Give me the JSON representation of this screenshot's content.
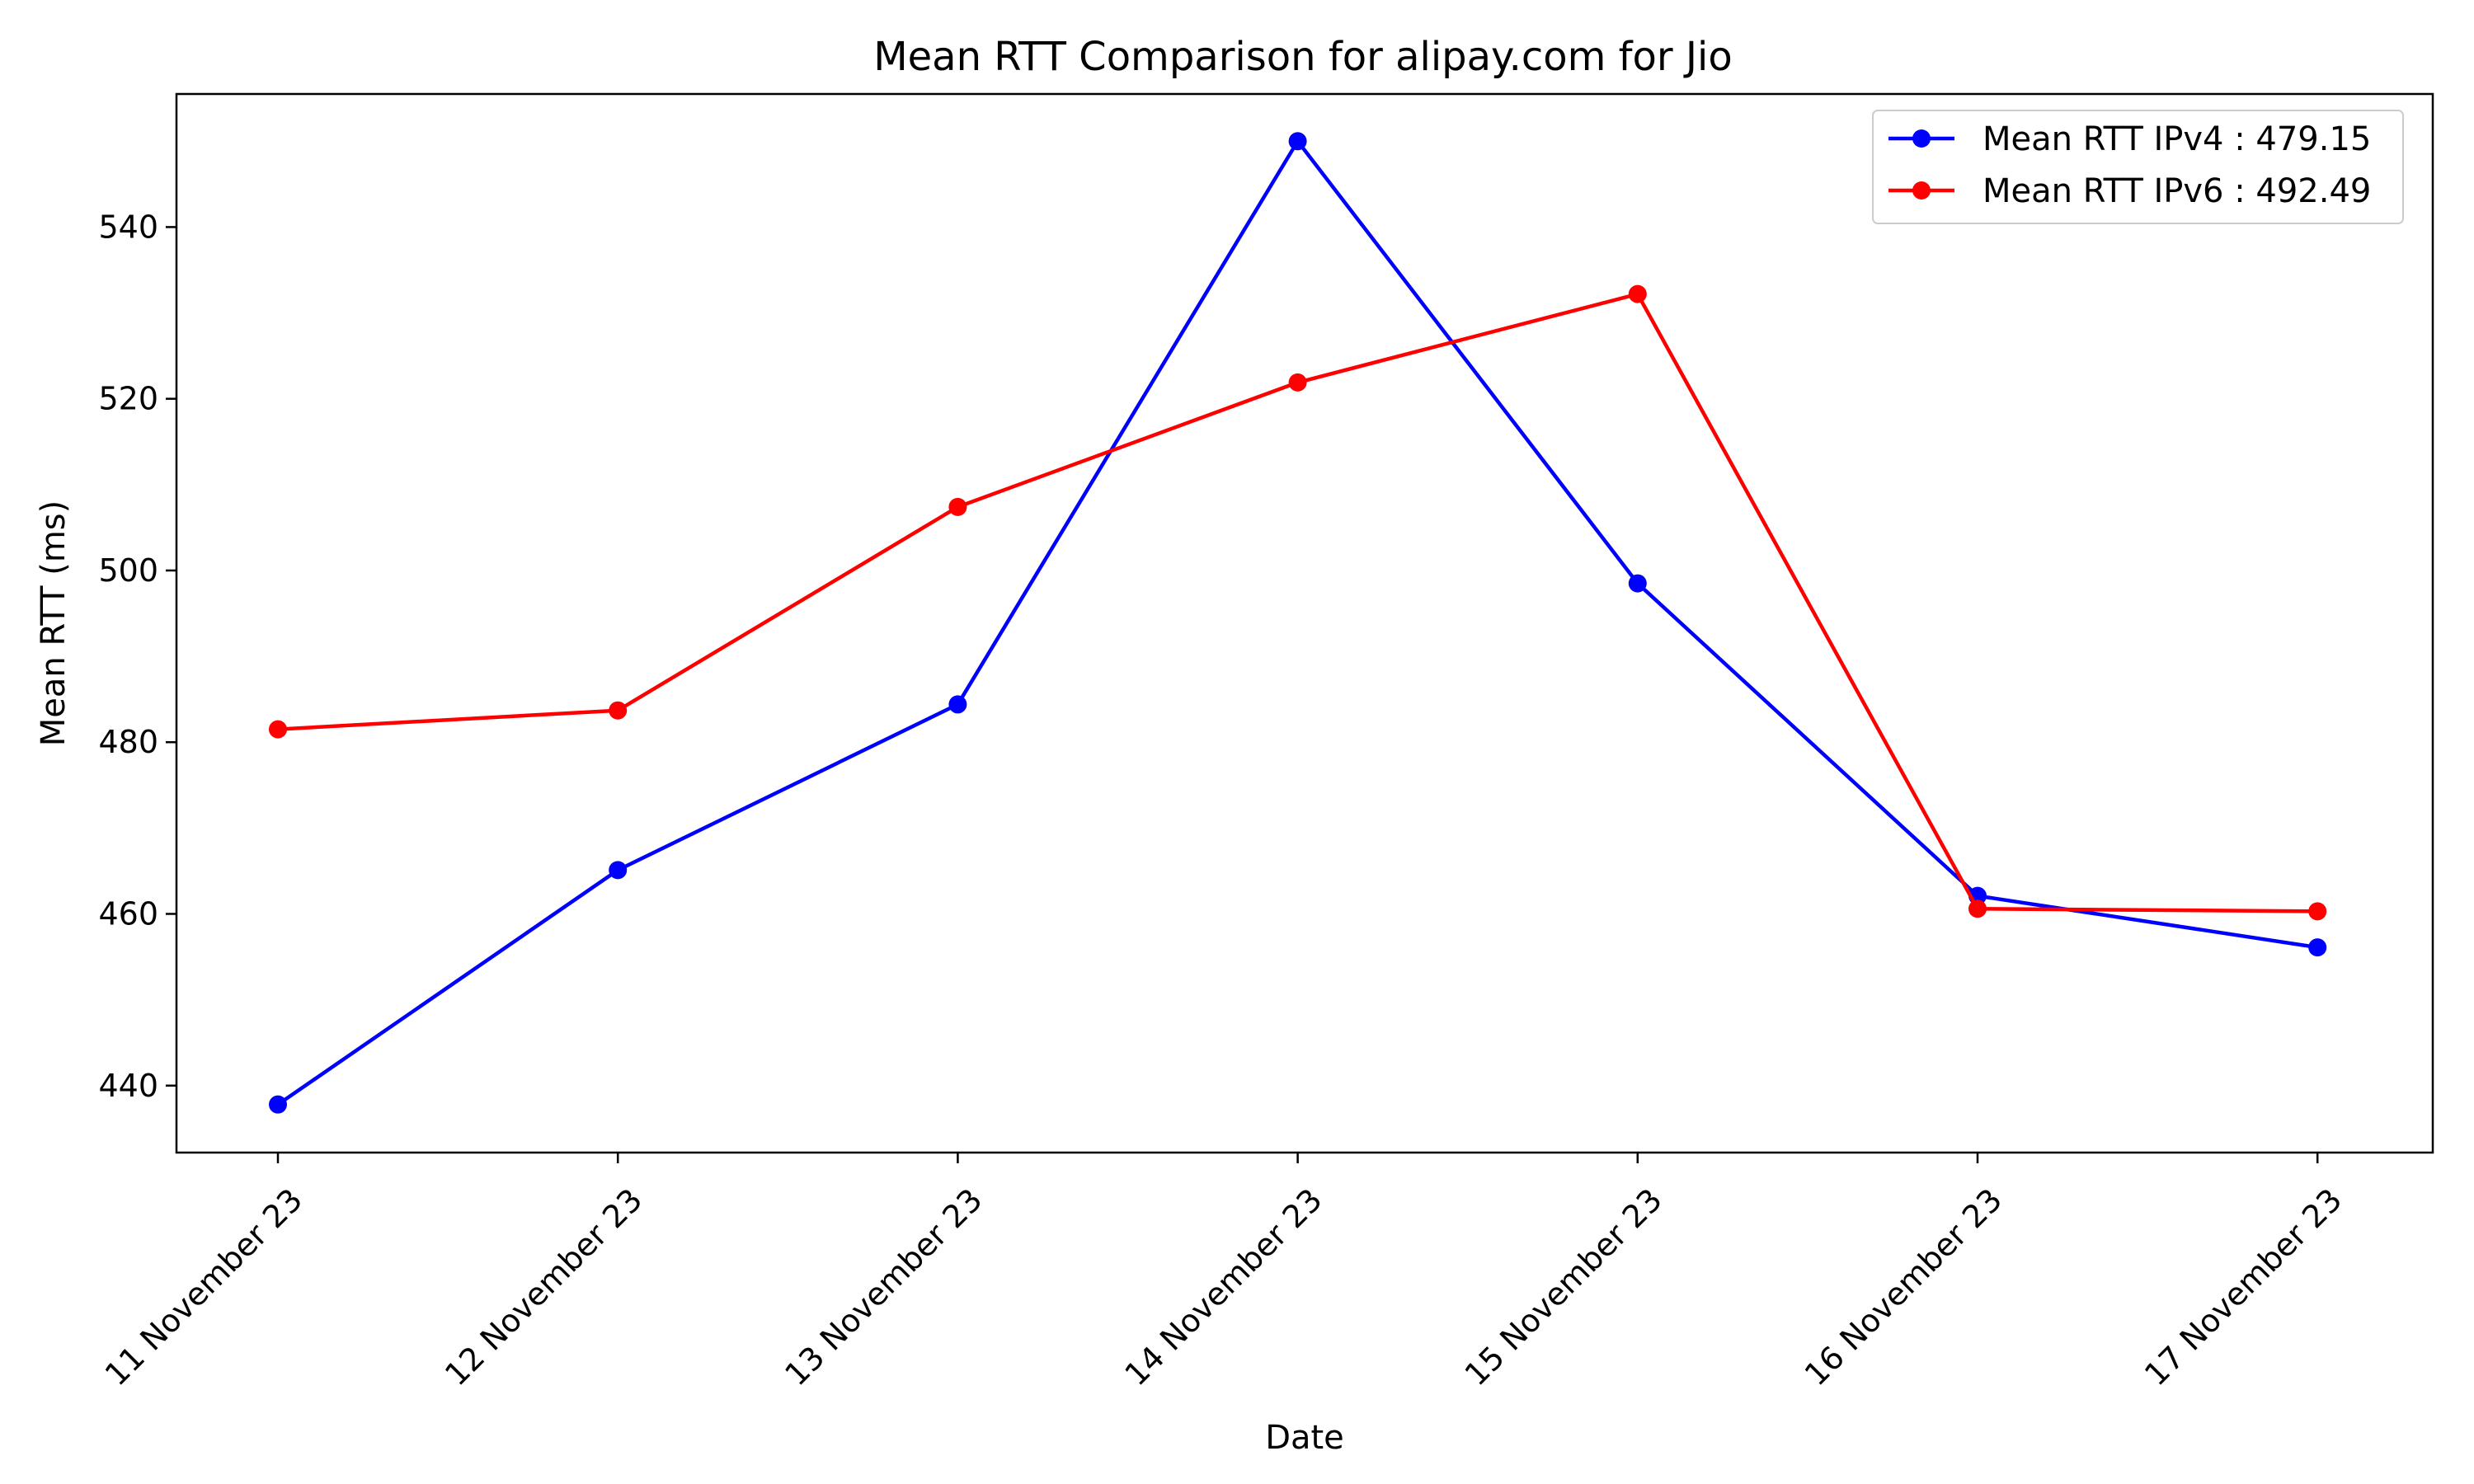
{
  "chart_data": {
    "type": "line",
    "title": "Mean RTT Comparison for alipay.com for Jio",
    "xlabel": "Date",
    "ylabel": "Mean RTT (ms)",
    "categories": [
      "11 November 23",
      "12 November 23",
      "13 November 23",
      "14 November 23",
      "15 November 23",
      "16 November 23",
      "17 November 23"
    ],
    "yticks": [
      440,
      460,
      480,
      500,
      520,
      540
    ],
    "ylim": [
      432.2,
      555.5
    ],
    "grid": false,
    "legend_position": "upper right",
    "series": [
      {
        "name": "Mean RTT IPv4 : 479.15",
        "color": "#0000ff",
        "marker": "circle",
        "values": [
          437.8,
          465.1,
          484.4,
          550.0,
          498.5,
          462.1,
          456.1
        ]
      },
      {
        "name": "Mean RTT IPv6 : 492.49",
        "color": "#ff0000",
        "marker": "circle",
        "values": [
          481.5,
          483.7,
          507.4,
          521.9,
          532.2,
          460.6,
          460.3
        ]
      }
    ]
  }
}
